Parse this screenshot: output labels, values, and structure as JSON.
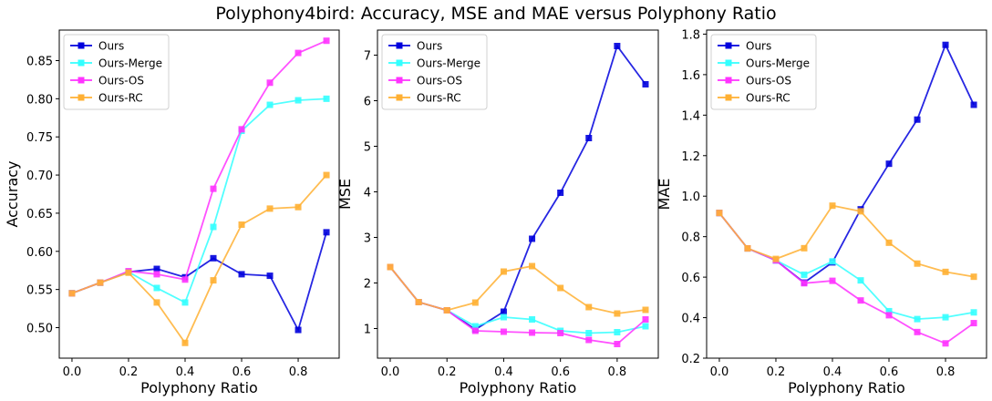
{
  "title": "Polyphony4bird: Accuracy, MSE and MAE versus Polyphony Ratio",
  "chart_data": [
    {
      "type": "line",
      "xlabel": "Polyphony Ratio",
      "ylabel": "Accuracy",
      "x": [
        0.0,
        0.1,
        0.2,
        0.3,
        0.4,
        0.5,
        0.6,
        0.7,
        0.8,
        0.9
      ],
      "xlim": [
        -0.045,
        0.945
      ],
      "ylim": [
        0.46,
        0.89
      ],
      "xticks": [
        0.0,
        0.2,
        0.4,
        0.6,
        0.8
      ],
      "xtick_labels": [
        "0.0",
        "0.2",
        "0.4",
        "0.6",
        "0.8"
      ],
      "yticks": [
        0.5,
        0.55,
        0.6,
        0.65,
        0.7,
        0.75,
        0.8,
        0.85
      ],
      "ytick_labels": [
        "0.50",
        "0.55",
        "0.60",
        "0.65",
        "0.70",
        "0.75",
        "0.80",
        "0.85"
      ],
      "legend": "top-left",
      "grid": false,
      "series": [
        {
          "name": "Ours",
          "color": "#0000dd",
          "values": [
            0.545,
            0.559,
            0.573,
            0.577,
            0.566,
            0.591,
            0.57,
            0.568,
            0.497,
            0.625
          ]
        },
        {
          "name": "Ours-Merge",
          "color": "#33ffff",
          "values": [
            0.545,
            0.559,
            0.573,
            0.552,
            0.533,
            0.632,
            0.758,
            0.792,
            0.798,
            0.8
          ]
        },
        {
          "name": "Ours-OS",
          "color": "#ff33ff",
          "values": [
            0.545,
            0.559,
            0.574,
            0.57,
            0.563,
            0.682,
            0.76,
            0.821,
            0.86,
            0.876
          ]
        },
        {
          "name": "Ours-RC",
          "color": "#ffb033",
          "values": [
            0.545,
            0.559,
            0.572,
            0.533,
            0.48,
            0.562,
            0.635,
            0.656,
            0.658,
            0.7
          ]
        }
      ]
    },
    {
      "type": "line",
      "xlabel": "Polyphony Ratio",
      "ylabel": "MSE",
      "x": [
        0.0,
        0.1,
        0.2,
        0.3,
        0.4,
        0.5,
        0.6,
        0.7,
        0.8,
        0.9
      ],
      "xlim": [
        -0.045,
        0.945
      ],
      "ylim": [
        0.35,
        7.55
      ],
      "xticks": [
        0.0,
        0.2,
        0.4,
        0.6,
        0.8
      ],
      "xtick_labels": [
        "0.0",
        "0.2",
        "0.4",
        "0.6",
        "0.8"
      ],
      "yticks": [
        1,
        2,
        3,
        4,
        5,
        6,
        7
      ],
      "ytick_labels": [
        "1",
        "2",
        "3",
        "4",
        "5",
        "6",
        "7"
      ],
      "legend": "top-left",
      "grid": false,
      "series": [
        {
          "name": "Ours",
          "color": "#0000dd",
          "values": [
            2.35,
            1.58,
            1.4,
            0.98,
            1.37,
            2.97,
            3.98,
            5.18,
            7.2,
            6.36
          ]
        },
        {
          "name": "Ours-Merge",
          "color": "#33ffff",
          "values": [
            2.35,
            1.58,
            1.4,
            1.05,
            1.25,
            1.2,
            0.95,
            0.9,
            0.92,
            1.05
          ]
        },
        {
          "name": "Ours-OS",
          "color": "#ff33ff",
          "values": [
            2.35,
            1.58,
            1.4,
            0.95,
            0.93,
            0.91,
            0.9,
            0.75,
            0.66,
            1.2
          ]
        },
        {
          "name": "Ours-RC",
          "color": "#ffb033",
          "values": [
            2.35,
            1.58,
            1.4,
            1.57,
            2.25,
            2.37,
            1.89,
            1.47,
            1.33,
            1.41
          ]
        }
      ]
    },
    {
      "type": "line",
      "xlabel": "Polyphony Ratio",
      "ylabel": "MAE",
      "x": [
        0.0,
        0.1,
        0.2,
        0.3,
        0.4,
        0.5,
        0.6,
        0.7,
        0.8,
        0.9
      ],
      "xlim": [
        -0.045,
        0.945
      ],
      "ylim": [
        0.2,
        1.82
      ],
      "xticks": [
        0.0,
        0.2,
        0.4,
        0.6,
        0.8
      ],
      "xtick_labels": [
        "0.0",
        "0.2",
        "0.4",
        "0.6",
        "0.8"
      ],
      "yticks": [
        0.2,
        0.4,
        0.6,
        0.8,
        1.0,
        1.2,
        1.4,
        1.6,
        1.8
      ],
      "ytick_labels": [
        "0.2",
        "0.4",
        "0.6",
        "0.8",
        "1.0",
        "1.2",
        "1.4",
        "1.6",
        "1.8"
      ],
      "legend": "top-left",
      "grid": false,
      "series": [
        {
          "name": "Ours",
          "color": "#0000dd",
          "values": [
            0.917,
            0.742,
            0.683,
            0.573,
            0.673,
            0.935,
            1.16,
            1.378,
            1.747,
            1.451
          ]
        },
        {
          "name": "Ours-Merge",
          "color": "#33ffff",
          "values": [
            0.917,
            0.742,
            0.683,
            0.612,
            0.678,
            0.584,
            0.432,
            0.393,
            0.402,
            0.426
          ]
        },
        {
          "name": "Ours-OS",
          "color": "#ff33ff",
          "values": [
            0.917,
            0.742,
            0.683,
            0.57,
            0.582,
            0.485,
            0.412,
            0.329,
            0.273,
            0.373
          ]
        },
        {
          "name": "Ours-RC",
          "color": "#ffb033",
          "values": [
            0.917,
            0.742,
            0.69,
            0.743,
            0.953,
            0.925,
            0.77,
            0.667,
            0.626,
            0.602
          ]
        }
      ]
    }
  ]
}
